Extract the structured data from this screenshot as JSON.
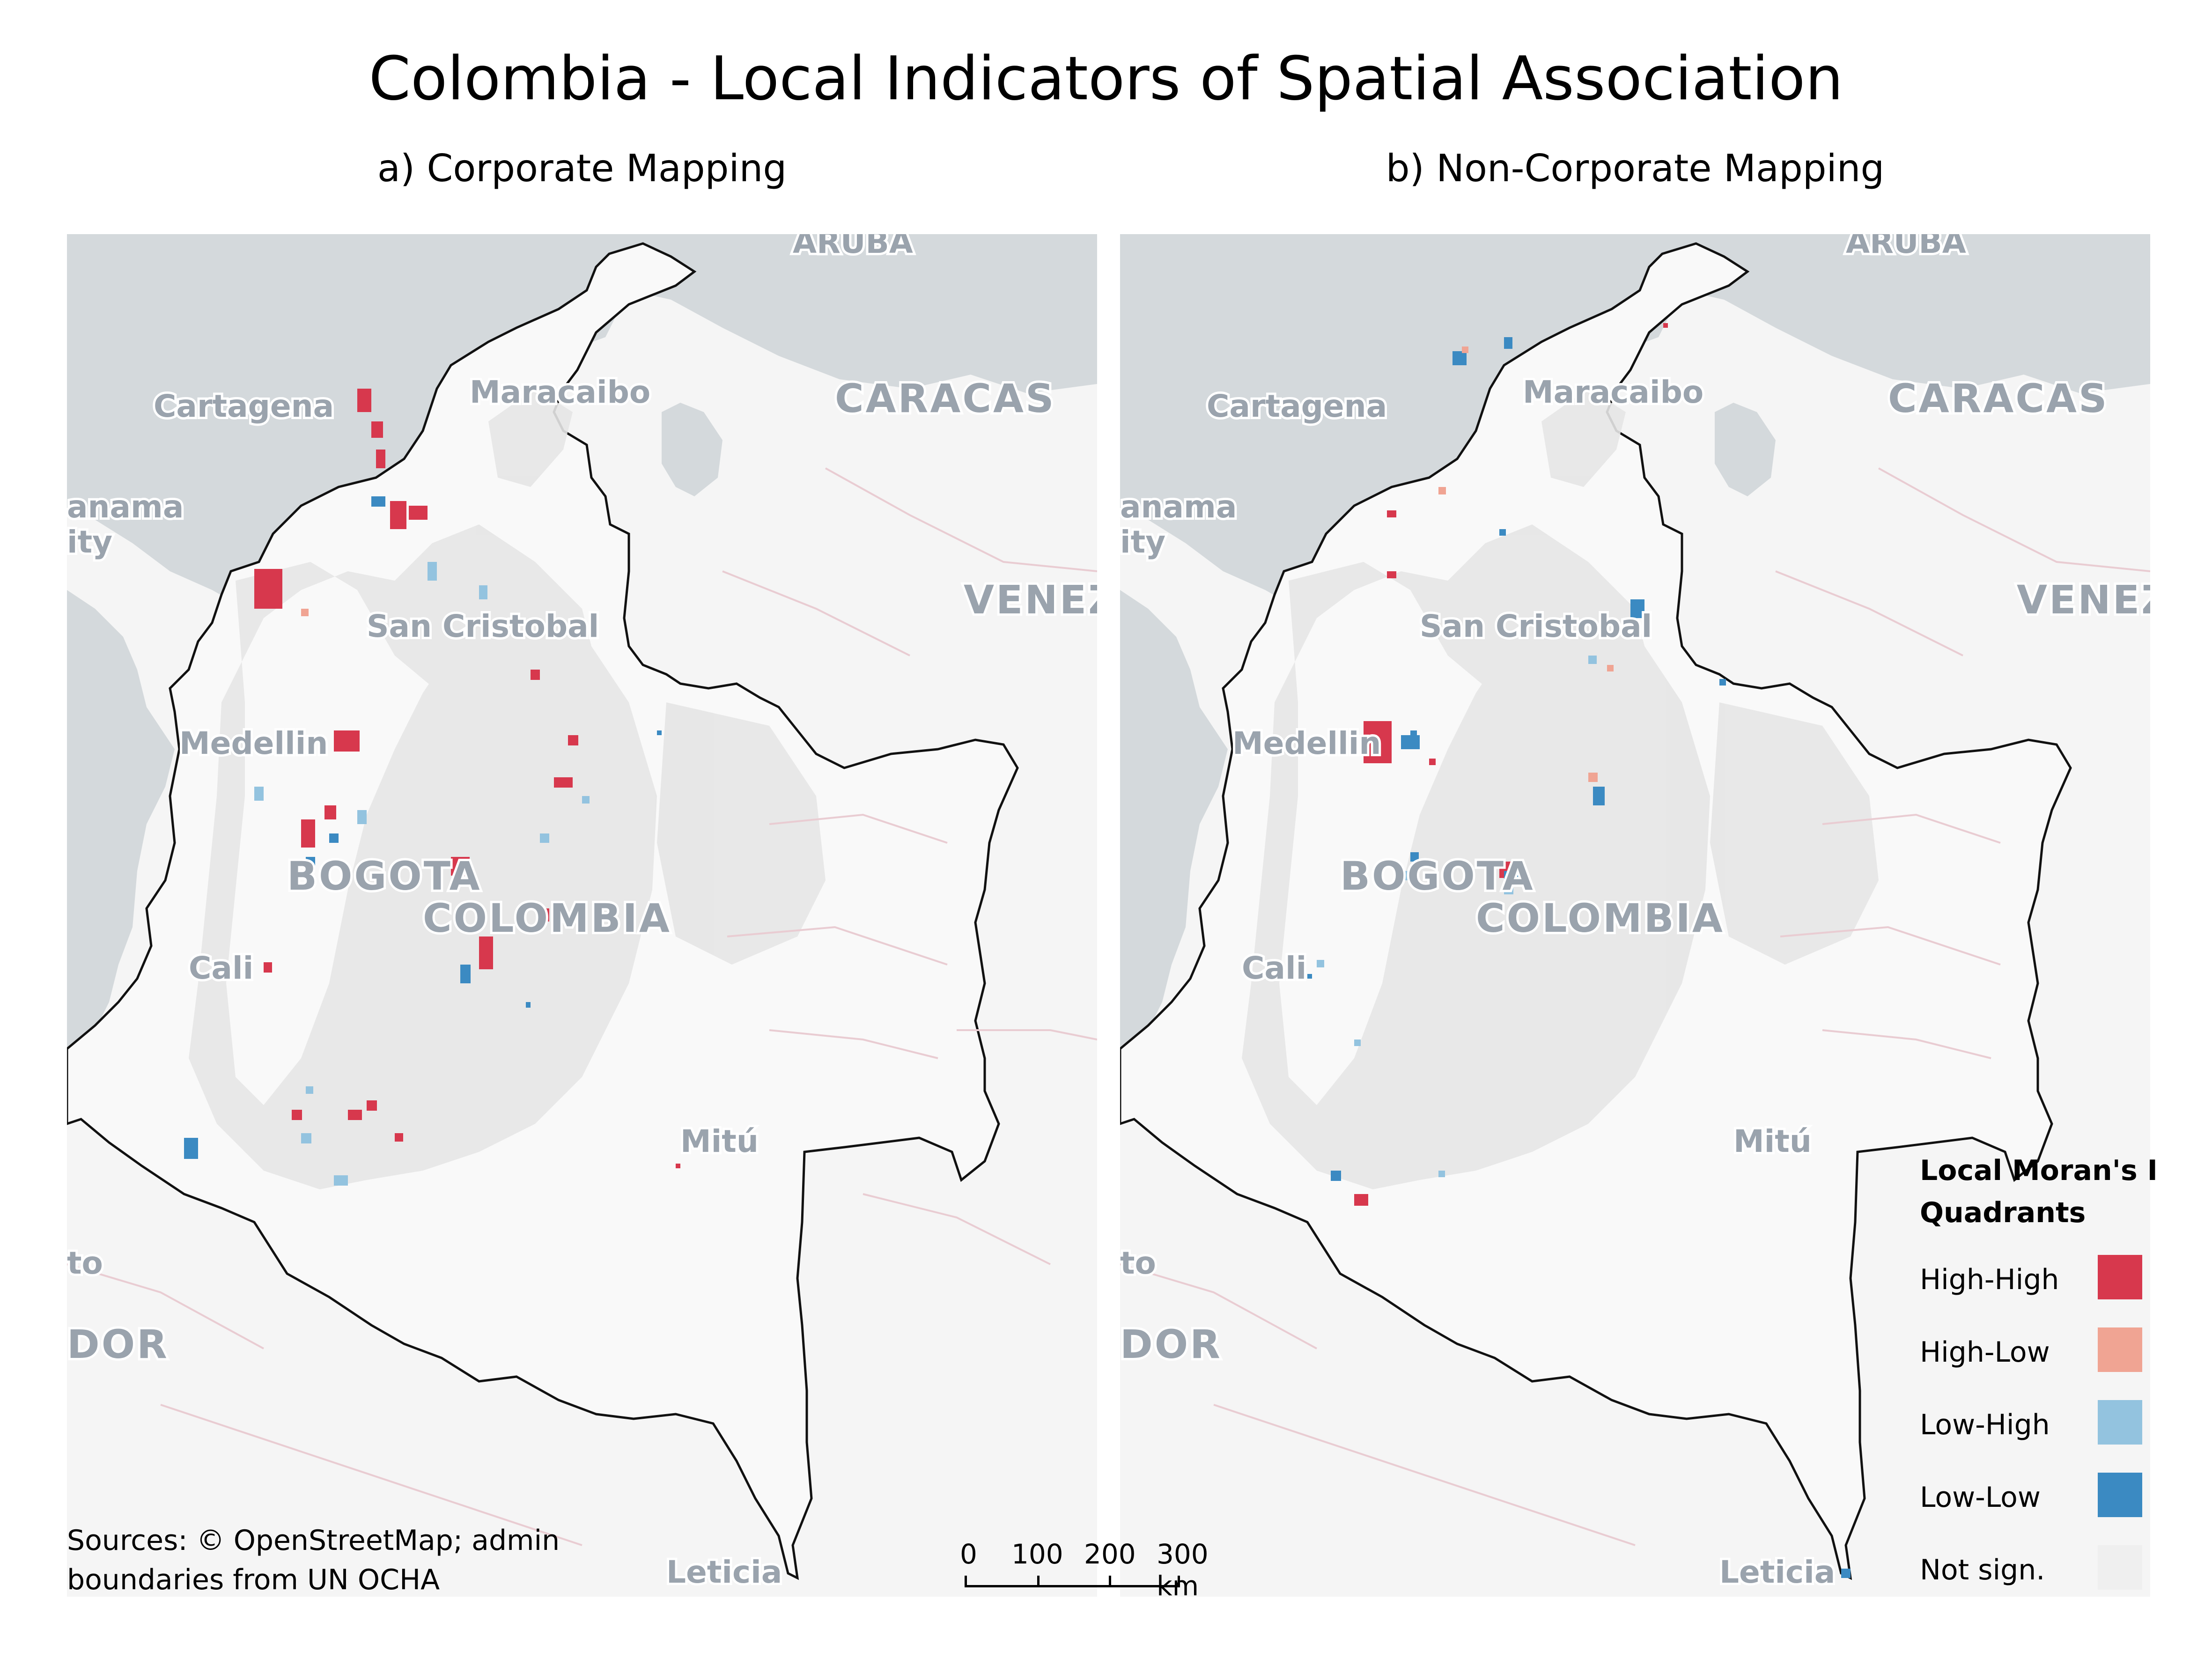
{
  "title": "Colombia - Local Indicators of Spatial Association",
  "panels": [
    {
      "id": "a",
      "subtitle": "a) Corporate Mapping"
    },
    {
      "id": "b",
      "subtitle": "b) Non-Corporate Mapping"
    }
  ],
  "places": {
    "aruba": "ARUBA",
    "cartagena": "Cartagena",
    "maracaibo": "Maracaibo",
    "caracas": "CARACAS",
    "panama": "anama",
    "panama_city": "ity",
    "san_cristobal": "San Cristobal",
    "venezuela": "VENEZ",
    "medellin": "Medellin",
    "bogota": "BOGOTA",
    "colombia": "COLOMBIA",
    "cali": "Cali",
    "mitu": "Mitú",
    "quito": "to",
    "ecuador": "DOR",
    "leticia": "Leticia"
  },
  "sources": [
    "Sources: © OpenStreetMap; admin",
    "boundaries from UN OCHA"
  ],
  "scalebar": {
    "labels": [
      "0",
      "100",
      "200",
      "300 km"
    ]
  },
  "legend": {
    "title": "Local Moran's I Quadrants",
    "title_lines": [
      "Local Moran's I",
      "Quadrants"
    ],
    "items": [
      {
        "label": "High-High",
        "color": "#d7384d"
      },
      {
        "label": "High-Low",
        "color": "#f0a493"
      },
      {
        "label": "Low-High",
        "color": "#93c3df"
      },
      {
        "label": "Low-Low",
        "color": "#3b8ac2"
      },
      {
        "label": "Not sign.",
        "color": "#efefef"
      }
    ]
  },
  "colors": {
    "sea": "#d4d9dc",
    "land": "#f5f5f5",
    "colombia_fill": "#f9f9f9",
    "not_significant": "#e6e6e6",
    "border": "#111111"
  }
}
